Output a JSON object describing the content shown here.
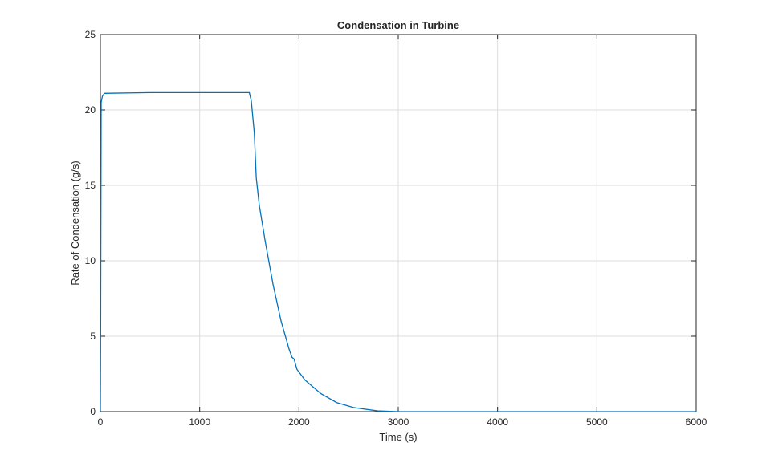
{
  "chart_data": {
    "type": "line",
    "title": "Condensation in Turbine",
    "x_label": "Time (s)",
    "y_label": "Rate of Condensation (g/s)",
    "x": [
      0,
      3,
      8,
      20,
      40,
      500,
      1500,
      1520,
      1550,
      1570,
      1580,
      1600,
      1660,
      1740,
      1820,
      1900,
      1930,
      1950,
      1980,
      2060,
      2220,
      2380,
      2550,
      2790,
      3000,
      6000
    ],
    "series": [
      {
        "color": "#0072bd",
        "values": [
          0,
          6,
          20.5,
          20.9,
          21.1,
          21.15,
          21.15,
          20.6,
          18.5,
          15.5,
          14.9,
          13.7,
          11.3,
          8.4,
          6.0,
          4.15,
          3.6,
          3.5,
          2.8,
          2.1,
          1.2,
          0.6,
          0.27,
          0.05,
          0,
          0
        ]
      }
    ],
    "xlim": [
      0,
      6000
    ],
    "xticks": [
      0,
      1000,
      2000,
      3000,
      4000,
      5000,
      6000
    ],
    "ylim": [
      0,
      25
    ],
    "yticks": [
      0,
      5,
      10,
      15,
      20,
      25
    ],
    "grid": true
  }
}
